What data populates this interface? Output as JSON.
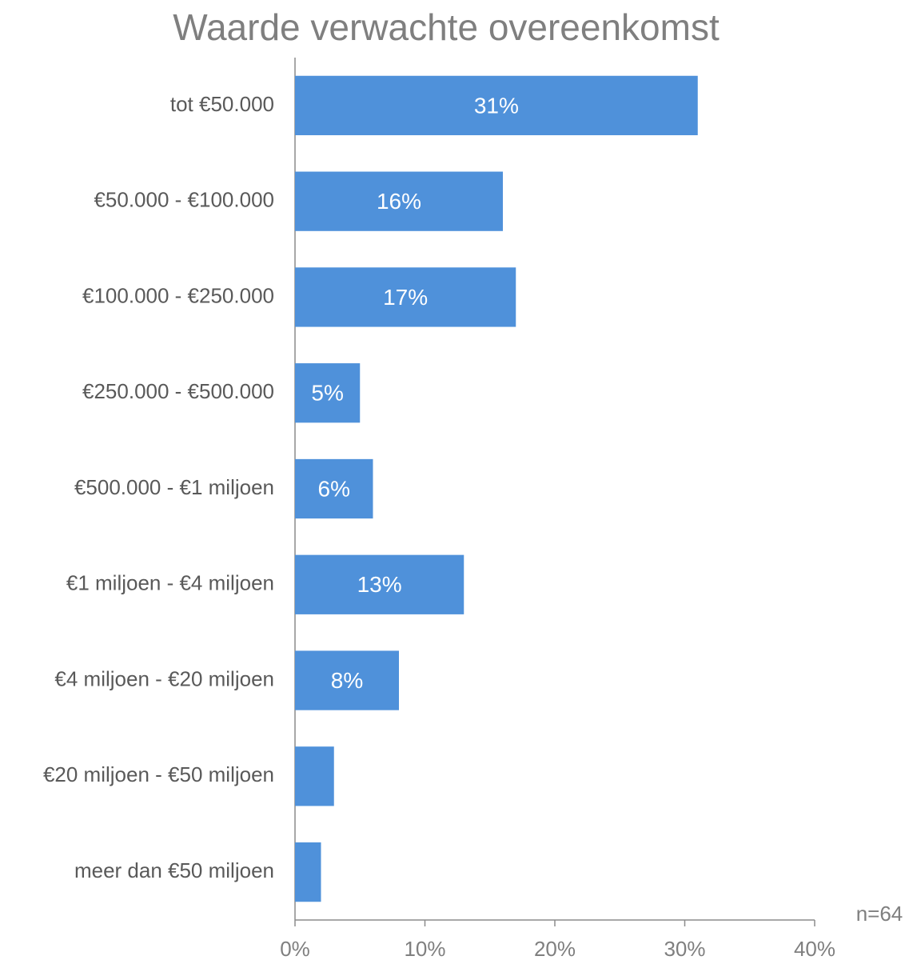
{
  "chart_data": {
    "type": "bar",
    "orientation": "horizontal",
    "title": "Waarde verwachte overeenkomst",
    "categories": [
      "tot €50.000",
      "€50.000 - €100.000",
      "€100.000 - €250.000",
      "€250.000 - €500.000",
      "€500.000 - €1 miljoen",
      "€1 miljoen - €4 miljoen",
      "€4 miljoen - €20 miljoen",
      "€20 miljoen - €50 miljoen",
      "meer dan €50 miljoen"
    ],
    "values": [
      31,
      16,
      17,
      5,
      6,
      13,
      8,
      3,
      2
    ],
    "value_labels": [
      "31%",
      "16%",
      "17%",
      "5%",
      "6%",
      "13%",
      "8%",
      null,
      null
    ],
    "color": "#4f91da",
    "xlim": [
      0,
      40
    ],
    "xticks": [
      {
        "value": 0,
        "label": "0%"
      },
      {
        "value": 10,
        "label": "10%"
      },
      {
        "value": 20,
        "label": "20%"
      },
      {
        "value": 30,
        "label": "30%"
      },
      {
        "value": 40,
        "label": "40%"
      }
    ],
    "annotation": "n=64"
  }
}
